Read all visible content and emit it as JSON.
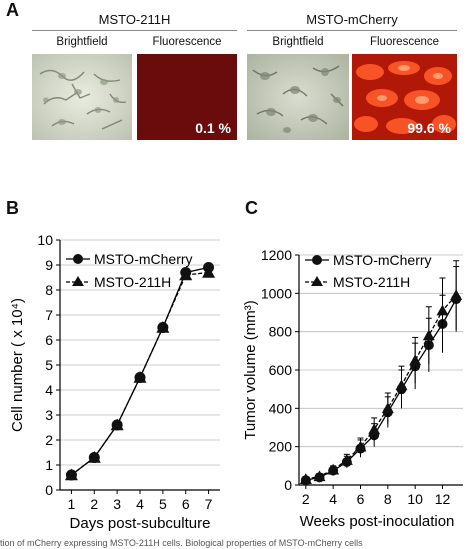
{
  "panel_a": {
    "letter": "A",
    "groups": [
      {
        "title": "MSTO-211H",
        "images": [
          {
            "label": "Brightfield",
            "kind": "brightfield",
            "percent": ""
          },
          {
            "label": "Fluorescence",
            "kind": "fluorescence-dark",
            "percent": "0.1 %"
          }
        ]
      },
      {
        "title": "MSTO-mCherry",
        "images": [
          {
            "label": "Brightfield",
            "kind": "brightfield",
            "percent": ""
          },
          {
            "label": "Fluorescence",
            "kind": "fluorescence-bright",
            "percent": "99.6 %"
          }
        ]
      }
    ]
  },
  "panel_b": {
    "letter": "B"
  },
  "panel_c": {
    "letter": "C"
  },
  "caption": "tion of mCherry expressing MSTO-211H cells. Biological properties of MSTO-mCherry cells",
  "colors": {
    "marker": "#111111",
    "fluorescence_dark": "#6b0c0c",
    "fluorescence_bright": "#e83a1a"
  },
  "chart_data": [
    {
      "type": "line",
      "xlabel": "Days post-subculture",
      "ylabel": "Cell number ( x 10⁴)",
      "xlim": [
        0.5,
        7.5
      ],
      "ylim": [
        0,
        10
      ],
      "xticks": [
        1,
        2,
        3,
        4,
        5,
        6,
        7
      ],
      "yticks": [
        0,
        1,
        2,
        3,
        4,
        5,
        6,
        7,
        8,
        9,
        10
      ],
      "grid": "horizontal",
      "legend": "top-left",
      "series": [
        {
          "name": "MSTO-mCherry",
          "marker": "circle",
          "x": [
            1,
            2,
            3,
            4,
            5,
            6,
            7
          ],
          "y": [
            0.6,
            1.3,
            2.6,
            4.5,
            6.5,
            8.7,
            8.9
          ]
        },
        {
          "name": "MSTO-211H",
          "marker": "triangle",
          "x": [
            1,
            2,
            3,
            4,
            5,
            6,
            7
          ],
          "y": [
            0.6,
            1.3,
            2.6,
            4.5,
            6.5,
            8.6,
            8.7
          ]
        }
      ]
    },
    {
      "type": "line",
      "xlabel": "Weeks post-inoculation",
      "ylabel": "Tumor volume (mm³)",
      "xlim": [
        1.5,
        13.5
      ],
      "ylim": [
        0,
        1200
      ],
      "xticks": [
        2,
        4,
        6,
        8,
        10,
        12
      ],
      "yticks": [
        0,
        200,
        400,
        600,
        800,
        1000,
        1200
      ],
      "grid": "horizontal",
      "legend": "top-left",
      "series": [
        {
          "name": "MSTO-mCherry",
          "marker": "circle",
          "x": [
            2,
            3,
            4,
            5,
            6,
            7,
            8,
            9,
            10,
            11,
            12,
            13
          ],
          "y": [
            25,
            40,
            75,
            120,
            190,
            260,
            380,
            500,
            620,
            730,
            840,
            970
          ],
          "err": [
            10,
            15,
            20,
            30,
            45,
            60,
            80,
            100,
            120,
            140,
            150,
            170
          ]
        },
        {
          "name": "MSTO-211H",
          "marker": "triangle",
          "x": [
            2,
            3,
            4,
            5,
            6,
            7,
            8,
            9,
            10,
            11,
            12,
            13
          ],
          "y": [
            30,
            45,
            80,
            130,
            200,
            290,
            400,
            520,
            650,
            780,
            910,
            990
          ],
          "err": [
            10,
            15,
            20,
            30,
            45,
            60,
            80,
            100,
            120,
            150,
            170,
            180
          ]
        }
      ]
    }
  ]
}
